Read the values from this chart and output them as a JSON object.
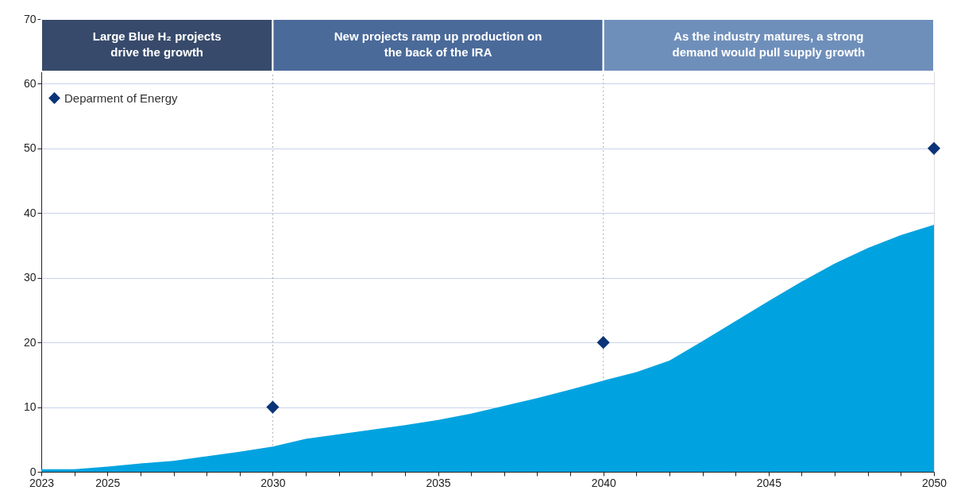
{
  "chart_data": {
    "type": "area",
    "x": [
      2023,
      2024,
      2025,
      2026,
      2027,
      2028,
      2029,
      2030,
      2031,
      2032,
      2033,
      2034,
      2035,
      2036,
      2037,
      2038,
      2039,
      2040,
      2041,
      2042,
      2043,
      2044,
      2045,
      2046,
      2047,
      2048,
      2049,
      2050
    ],
    "series": [
      {
        "color": "#00a3e0",
        "values": [
          0.4,
          0.4,
          0.8,
          1.3,
          1.7,
          2.4,
          3.1,
          3.9,
          5.1,
          5.8,
          6.5,
          7.2,
          8.0,
          9.0,
          10.2,
          11.4,
          12.7,
          14.1,
          15.4,
          17.2,
          20.2,
          23.3,
          26.4,
          29.4,
          32.2,
          34.6,
          36.6,
          38.2
        ]
      },
      {
        "type": "scatter",
        "name": "Deparment of Energy",
        "color": "#0b3478",
        "marker": "diamond",
        "x": [
          2030,
          2040,
          2050
        ],
        "values": [
          10,
          20,
          50
        ]
      }
    ],
    "xlim": [
      2023,
      2050
    ],
    "xticks": [
      2023,
      {
        "value": 2024,
        "label": null
      },
      2025,
      {
        "value": 2026,
        "label": null
      },
      {
        "value": 2027,
        "label": null
      },
      {
        "value": 2028,
        "label": null
      },
      {
        "value": 2029,
        "label": null
      },
      2030,
      {
        "value": 2031,
        "label": null
      },
      {
        "value": 2032,
        "label": null
      },
      {
        "value": 2033,
        "label": null
      },
      {
        "value": 2034,
        "label": null
      },
      2035,
      {
        "value": 2036,
        "label": null
      },
      {
        "value": 2037,
        "label": null
      },
      {
        "value": 2038,
        "label": null
      },
      {
        "value": 2039,
        "label": null
      },
      2040,
      {
        "value": 2041,
        "label": null
      },
      {
        "value": 2042,
        "label": null
      },
      {
        "value": 2043,
        "label": null
      },
      {
        "value": 2044,
        "label": null
      },
      2045,
      {
        "value": 2046,
        "label": null
      },
      {
        "value": 2047,
        "label": null
      },
      {
        "value": 2048,
        "label": null
      },
      {
        "value": 2049,
        "label": null
      },
      2050
    ],
    "ylim": [
      0,
      70
    ],
    "yticks": [
      0,
      10,
      20,
      30,
      40,
      50,
      60,
      70
    ],
    "grid": "y",
    "legend": "top left",
    "ref_lines": [
      {
        "axis": "x",
        "value": 2030,
        "color": "#b0b0b0",
        "line_style": "dotted"
      },
      {
        "axis": "x",
        "value": 2040,
        "color": "#b0b0b0",
        "line_style": "dotted"
      }
    ],
    "bands": [
      {
        "axis": "x",
        "from": 2023,
        "to": 2030,
        "label": "Large Blue H₂ projects drive the growth",
        "color": "#374a6b"
      },
      {
        "axis": "x",
        "from": 2030,
        "to": 2040,
        "label": "New projects ramp up production on the back of the IRA",
        "color": "#4a6a9a"
      },
      {
        "axis": "x",
        "from": 2040,
        "to": 2050,
        "label": "As the industry matures, a strong demand would pull supply growth",
        "color": "#6f8fbb"
      }
    ]
  }
}
